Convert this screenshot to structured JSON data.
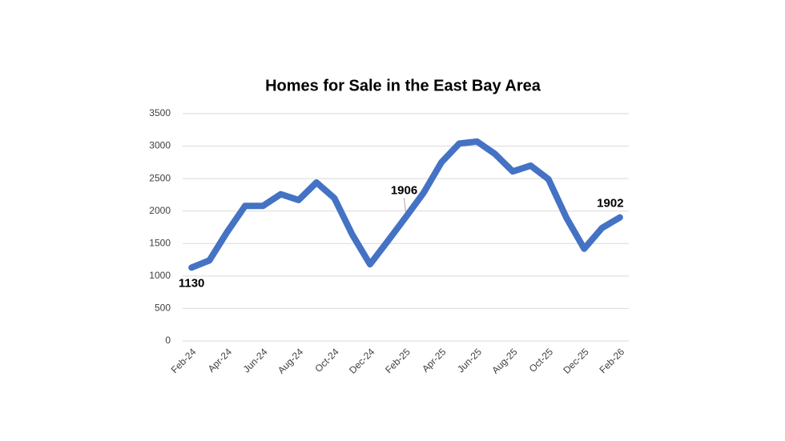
{
  "chart_data": {
    "type": "line",
    "title": "Homes for Sale in the East Bay Area",
    "categories": [
      "Feb-24",
      null,
      "Apr-24",
      null,
      "Jun-24",
      null,
      "Aug-24",
      null,
      "Oct-24",
      null,
      "Dec-24",
      null,
      "Feb-25",
      null,
      "Apr-25",
      null,
      "Jun-25",
      null,
      "Aug-25",
      null,
      "Oct-25",
      null,
      "Dec-25",
      null,
      "Feb-26"
    ],
    "values": [
      1130,
      1240,
      1680,
      2080,
      2080,
      2260,
      2170,
      2440,
      2200,
      1640,
      1180,
      1540,
      1906,
      2280,
      2750,
      3040,
      3070,
      2880,
      2610,
      2700,
      2490,
      1900,
      1420,
      1740,
      1902
    ],
    "value_labels": [
      "1130",
      null,
      null,
      null,
      null,
      null,
      null,
      null,
      null,
      null,
      null,
      null,
      "1906",
      null,
      null,
      null,
      null,
      null,
      null,
      null,
      null,
      null,
      null,
      null,
      "1902"
    ],
    "color": "#4472c4",
    "ylim": [
      0,
      3500
    ],
    "yticks": [
      0,
      500,
      1000,
      1500,
      2000,
      2500,
      3000,
      3500
    ],
    "grid": true
  }
}
